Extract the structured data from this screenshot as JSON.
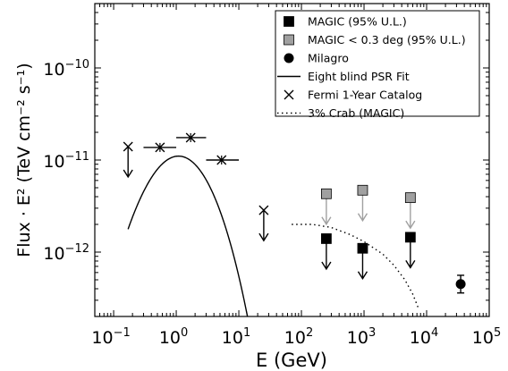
{
  "chart_data": {
    "type": "scatter",
    "x_scale": "log",
    "y_scale": "log",
    "xlim": [
      0.05,
      100000
    ],
    "ylim": [
      2e-13,
      5e-10
    ],
    "xlabel": "E (GeV)",
    "ylabel": "Flux · E² (TeV cm⁻² s⁻¹)",
    "x_ticks": [
      {
        "value": 0.1,
        "base": "10",
        "exp": "−1"
      },
      {
        "value": 1,
        "base": "10",
        "exp": "0"
      },
      {
        "value": 10,
        "base": "10",
        "exp": "1"
      },
      {
        "value": 100,
        "base": "10",
        "exp": "2"
      },
      {
        "value": 1000,
        "base": "10",
        "exp": "3"
      },
      {
        "value": 10000,
        "base": "10",
        "exp": "4"
      },
      {
        "value": 100000,
        "base": "10",
        "exp": "5"
      }
    ],
    "y_ticks": [
      {
        "value": 1e-12,
        "base": "10",
        "exp": "−12"
      },
      {
        "value": 1e-11,
        "base": "10",
        "exp": "−11"
      },
      {
        "value": 1e-10,
        "base": "10",
        "exp": "−10"
      }
    ],
    "legend_position": "top-right",
    "series": [
      {
        "name": "MAGIC (95% U.L.)",
        "marker": "square",
        "color": "#000000",
        "upper_limit": true,
        "points": [
          {
            "x": 250,
            "y": 1.4e-12
          },
          {
            "x": 950,
            "y": 1.1e-12
          },
          {
            "x": 5500,
            "y": 1.45e-12
          }
        ]
      },
      {
        "name": "MAGIC < 0.3 deg (95% U.L.)",
        "marker": "square",
        "color": "#a0a0a0",
        "upper_limit": true,
        "points": [
          {
            "x": 250,
            "y": 4.3e-12
          },
          {
            "x": 950,
            "y": 4.7e-12
          },
          {
            "x": 5500,
            "y": 3.9e-12
          }
        ]
      },
      {
        "name": "Milagro",
        "marker": "circle",
        "color": "#000000",
        "points": [
          {
            "x": 35000,
            "y": 4.5e-13,
            "y_low": 3.6e-13,
            "y_high": 5.6e-13
          }
        ]
      },
      {
        "name": "Eight blind PSR Fit",
        "line": "solid",
        "color": "#000000",
        "model": {
          "norm": 1.9e-11,
          "peak_x": 1.5,
          "sigma_decades": 0.45,
          "high_cut": 3.5,
          "cut_index": 0.6
        },
        "x_range": [
          0.17,
          20
        ]
      },
      {
        "name": "Fermi 1-Year Catalog",
        "marker": "x",
        "color": "#000000",
        "points": [
          {
            "x": 0.17,
            "y": 1.4e-11,
            "upper_limit": true
          },
          {
            "x": 0.55,
            "y": 1.37e-11,
            "x_low": 0.3,
            "x_high": 1.0
          },
          {
            "x": 1.7,
            "y": 1.75e-11,
            "x_low": 1.0,
            "x_high": 3.0
          },
          {
            "x": 5.3,
            "y": 1e-11,
            "x_low": 3.0,
            "x_high": 10
          },
          {
            "x": 25,
            "y": 2.85e-12,
            "upper_limit": true
          }
        ]
      },
      {
        "name": "3% Crab (MAGIC)",
        "line": "dotted",
        "color": "#000000",
        "points": [
          {
            "x": 70,
            "y": 2e-12
          },
          {
            "x": 150,
            "y": 2e-12
          },
          {
            "x": 300,
            "y": 1.85e-12
          },
          {
            "x": 600,
            "y": 1.55e-12
          },
          {
            "x": 1000,
            "y": 1.3e-12
          },
          {
            "x": 2000,
            "y": 9.5e-13
          },
          {
            "x": 3000,
            "y": 7.2e-13
          },
          {
            "x": 4500,
            "y": 5e-13
          },
          {
            "x": 6000,
            "y": 3.5e-13
          },
          {
            "x": 7500,
            "y": 2.4e-13
          }
        ]
      }
    ]
  }
}
